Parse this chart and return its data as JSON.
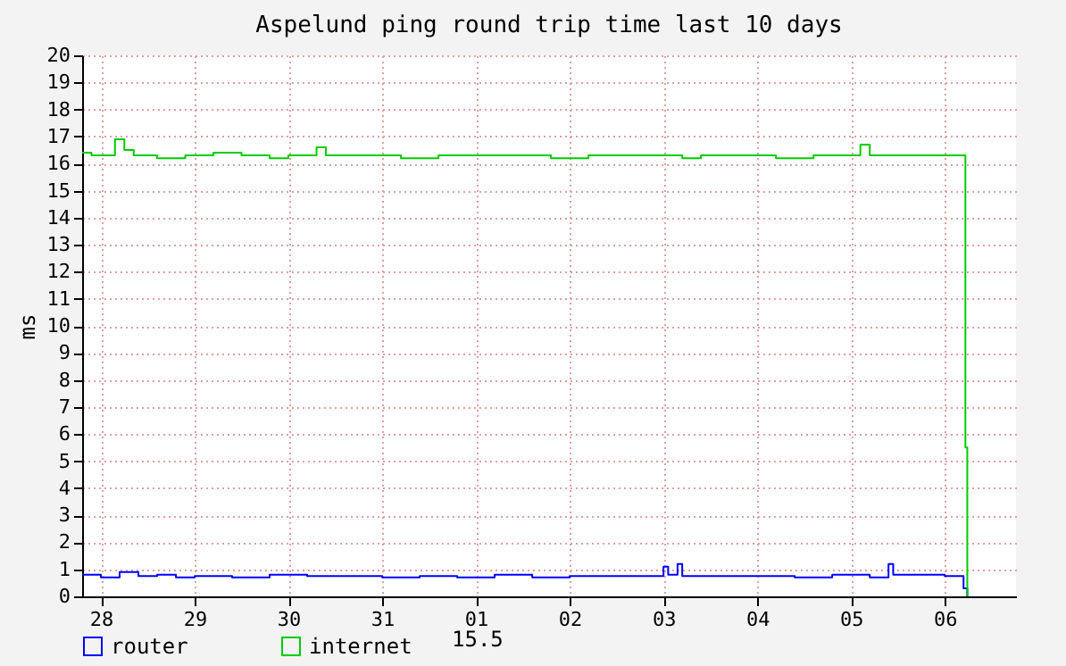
{
  "chart_data": {
    "type": "step",
    "title": "Aspelund ping round trip time last 10 days",
    "ylabel": "ms",
    "xlim": [
      "--07-27T19:12",
      "--08-06T18:14"
    ],
    "xticks": [
      {
        "value": "--07-28",
        "label": "28"
      },
      {
        "value": "--07-29",
        "label": "29"
      },
      {
        "value": "--07-30",
        "label": "30"
      },
      {
        "value": "--07-31",
        "label": "31"
      },
      {
        "value": "--08-01",
        "label": "01"
      },
      {
        "value": "--08-02",
        "label": "02"
      },
      {
        "value": "--08-03",
        "label": "03"
      },
      {
        "value": "--08-04",
        "label": "04"
      },
      {
        "value": "--08-05",
        "label": "05"
      },
      {
        "value": "--08-06",
        "label": "06"
      }
    ],
    "ylim": [
      0,
      20
    ],
    "yticks": [
      0,
      1,
      2,
      3,
      4,
      5,
      6,
      7,
      8,
      9,
      10,
      11,
      12,
      13,
      14,
      15,
      16,
      17,
      18,
      19,
      20
    ],
    "grid": true,
    "legend": "bottom",
    "annotations": [
      "15.5"
    ],
    "series": [
      {
        "name": "router",
        "color": "#0000ff",
        "x": [
          "--07-27T19:12",
          "--07-28T00:00",
          "--07-28T04:48",
          "--07-28T09:36",
          "--07-28T14:24",
          "--07-28T19:12",
          "--07-29T00:00",
          "--07-29T09:36",
          "--07-29T19:12",
          "--07-30T04:48",
          "--07-30T14:24",
          "--07-31T00:00",
          "--07-31T09:36",
          "--07-31T19:12",
          "--08-01T04:48",
          "--08-01T14:24",
          "--08-02T00:00",
          "--08-02T09:36",
          "--08-02T19:12",
          "--08-03T00:00",
          "--08-03T01:12",
          "--08-03T03:36",
          "--08-03T04:48",
          "--08-03T14:24",
          "--08-04T00:00",
          "--08-04T09:36",
          "--08-04T19:12",
          "--08-05T04:48",
          "--08-05T09:36",
          "--08-05T10:48",
          "--08-05T19:12",
          "--08-06T00:00",
          "--08-06T04:48",
          "--08-06T05:46"
        ],
        "values": [
          0.8,
          0.7,
          0.9,
          0.75,
          0.8,
          0.7,
          0.75,
          0.7,
          0.8,
          0.75,
          0.75,
          0.7,
          0.75,
          0.7,
          0.8,
          0.7,
          0.75,
          0.75,
          0.75,
          1.1,
          0.8,
          1.2,
          0.75,
          0.75,
          0.75,
          0.7,
          0.8,
          0.7,
          1.2,
          0.8,
          0.8,
          0.75,
          0.3,
          0
        ]
      },
      {
        "name": "internet",
        "color": "#00cc00",
        "x": [
          "--07-27T19:12",
          "--07-27T21:36",
          "--07-28T00:00",
          "--07-28T03:36",
          "--07-28T06:00",
          "--07-28T08:24",
          "--07-28T14:24",
          "--07-28T21:36",
          "--07-29T04:48",
          "--07-29T12:00",
          "--07-29T19:12",
          "--07-30T00:00",
          "--07-30T07:12",
          "--07-30T09:36",
          "--07-30T19:12",
          "--07-31T04:48",
          "--07-31T14:24",
          "--08-01T00:00",
          "--08-01T09:36",
          "--08-01T19:12",
          "--08-02T04:48",
          "--08-02T14:24",
          "--08-03T00:00",
          "--08-03T04:48",
          "--08-03T09:36",
          "--08-03T19:12",
          "--08-04T04:48",
          "--08-04T14:24",
          "--08-04T21:36",
          "--08-05T02:24",
          "--08-05T04:48",
          "--08-05T12:00",
          "--08-05T19:12",
          "--08-06T00:00",
          "--08-06T05:17",
          "--08-06T05:46"
        ],
        "values": [
          16.4,
          16.3,
          16.3,
          16.9,
          16.5,
          16.3,
          16.2,
          16.3,
          16.4,
          16.3,
          16.2,
          16.3,
          16.6,
          16.3,
          16.3,
          16.2,
          16.3,
          16.3,
          16.3,
          16.2,
          16.3,
          16.3,
          16.3,
          16.2,
          16.3,
          16.3,
          16.2,
          16.3,
          16.3,
          16.7,
          16.3,
          16.3,
          16.3,
          16.3,
          5.5,
          0
        ]
      }
    ]
  }
}
